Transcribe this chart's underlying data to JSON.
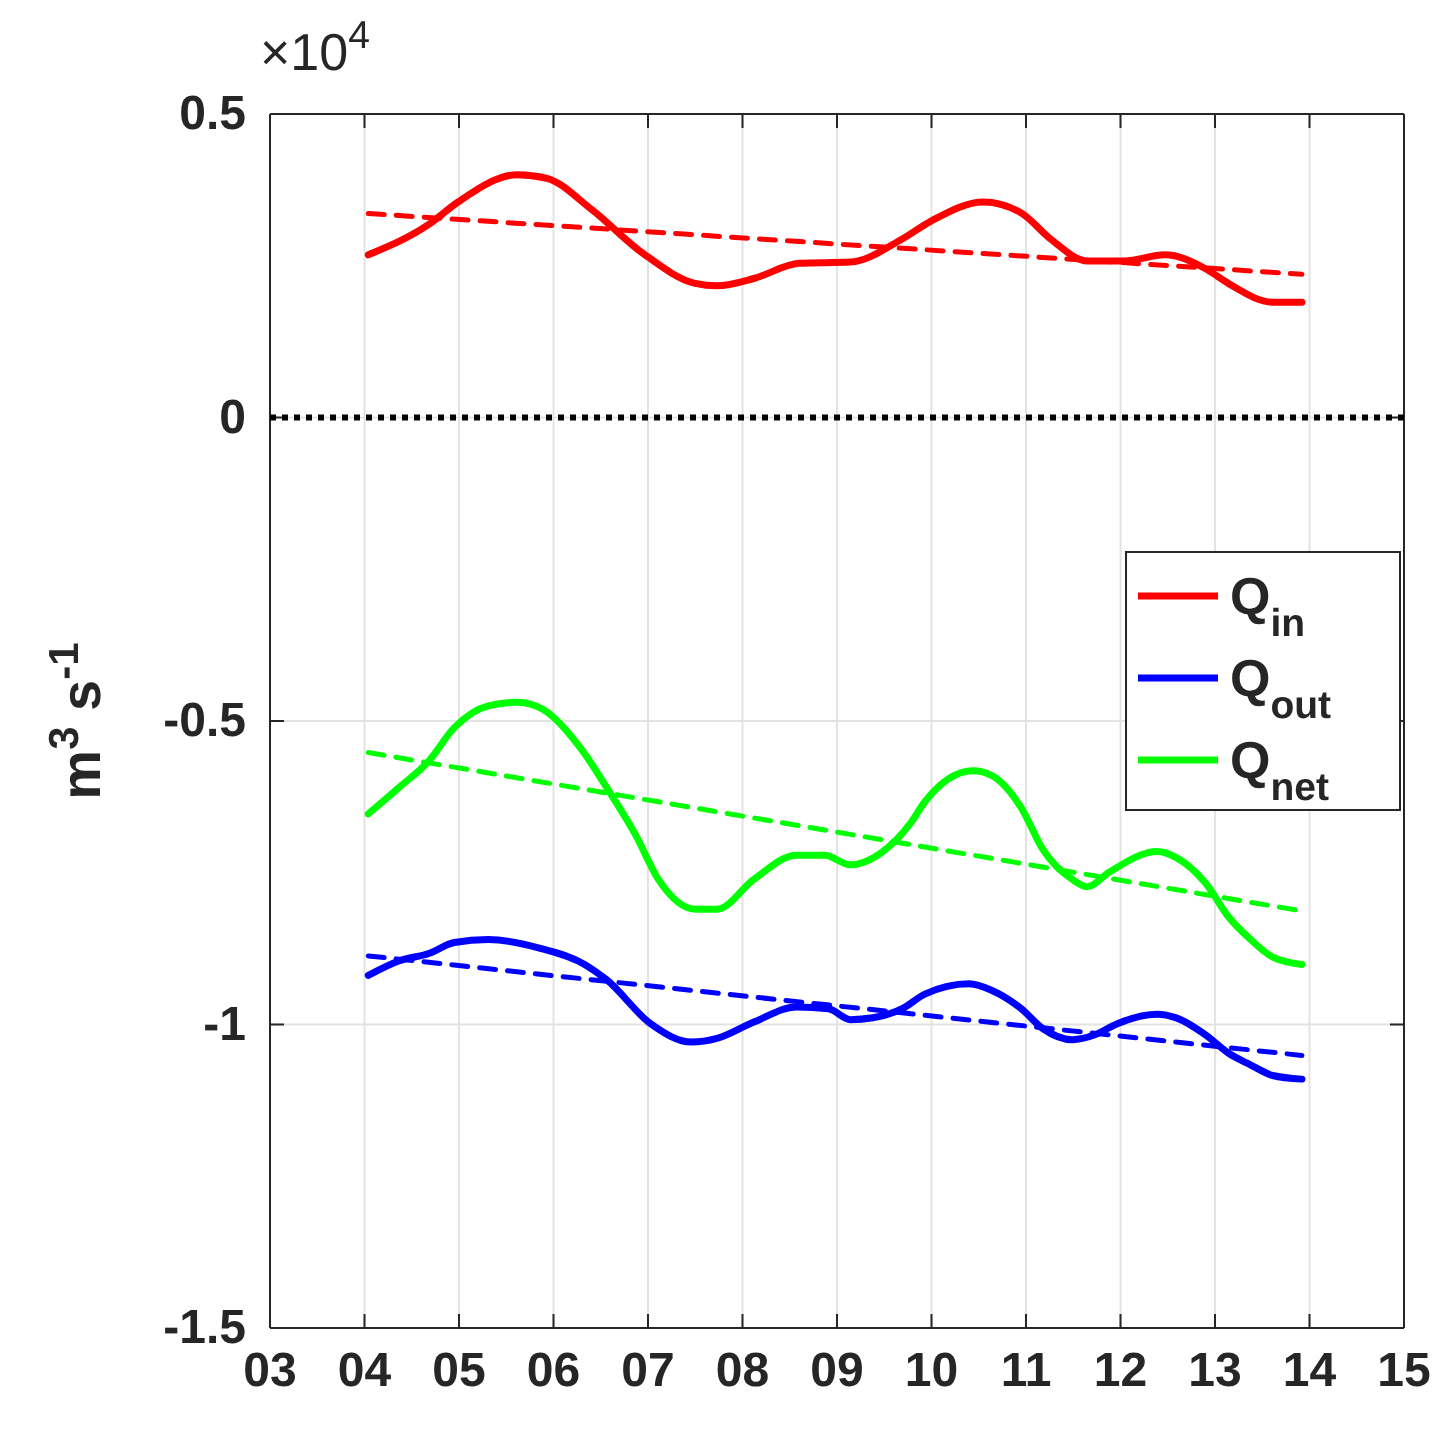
{
  "chart_data": {
    "type": "line",
    "ylabel": "m$^{3}$ s$^{-1}$",
    "annotations": [
      "×10$^{4}$"
    ],
    "xlim": [
      3,
      15
    ],
    "xticks": [
      {
        "value": 3,
        "label": "03"
      },
      {
        "value": 4,
        "label": "04"
      },
      {
        "value": 5,
        "label": "05"
      },
      {
        "value": 6,
        "label": "06"
      },
      {
        "value": 7,
        "label": "07"
      },
      {
        "value": 8,
        "label": "08"
      },
      {
        "value": 9,
        "label": "09"
      },
      {
        "value": 10,
        "label": "10"
      },
      {
        "value": 11,
        "label": "11"
      },
      {
        "value": 12,
        "label": "12"
      },
      {
        "value": 13,
        "label": "13"
      },
      {
        "value": 14,
        "label": "14"
      },
      {
        "value": 15,
        "label": "15"
      }
    ],
    "ylim": [
      -1.5,
      0.5
    ],
    "yticks": [
      -1.5,
      -1,
      -0.5,
      0,
      0.5
    ],
    "grid": true,
    "legend": "right",
    "marker": "none",
    "ref_lines": [
      {
        "axis": "y",
        "value": 0,
        "color": "#000000",
        "line_style": "dotted"
      }
    ],
    "series": [
      {
        "name": "Q$_{in}$",
        "color": "#ff0000",
        "line_style": "solid",
        "x": [
          4.04,
          4.68,
          4.99,
          5.62,
          5.93,
          6.4,
          6.95,
          7.5,
          7.73,
          8.12,
          8.6,
          9.14,
          9.69,
          10.0,
          10.55,
          10.95,
          11.26,
          11.65,
          12.04,
          12.47,
          12.9,
          13.14,
          13.61,
          13.92
        ],
        "values": [
          0.268,
          0.318,
          0.355,
          0.4,
          0.394,
          0.343,
          0.27,
          0.221,
          0.217,
          0.229,
          0.254,
          0.256,
          0.294,
          0.324,
          0.355,
          0.337,
          0.294,
          0.258,
          0.258,
          0.268,
          0.245,
          0.221,
          0.19,
          0.19
        ]
      },
      {
        "name": "Q$_{out}$",
        "color": "#0000ff",
        "line_style": "solid",
        "x": [
          4.04,
          4.37,
          4.68,
          4.95,
          5.31,
          5.85,
          6.33,
          6.56,
          7.03,
          7.46,
          7.73,
          8.12,
          8.57,
          8.91,
          9.14,
          9.38,
          9.69,
          9.93,
          10.4,
          10.64,
          10.95,
          11.18,
          11.49,
          11.73,
          11.96,
          12.39,
          12.59,
          12.9,
          13.14,
          13.37,
          13.61,
          13.92
        ],
        "values": [
          -0.919,
          -0.895,
          -0.883,
          -0.865,
          -0.86,
          -0.874,
          -0.901,
          -0.926,
          -0.999,
          -1.029,
          -1.023,
          -0.996,
          -0.971,
          -0.974,
          -0.992,
          -0.989,
          -0.974,
          -0.95,
          -0.933,
          -0.944,
          -0.974,
          -1.007,
          -1.025,
          -1.017,
          -0.999,
          -0.983,
          -0.989,
          -1.017,
          -1.047,
          -1.066,
          -1.084,
          -1.09
        ]
      },
      {
        "name": "Q$_{net}$",
        "color": "#00ff00",
        "line_style": "solid",
        "x": [
          4.04,
          4.37,
          4.68,
          4.95,
          5.31,
          5.62,
          5.89,
          6.33,
          6.56,
          6.87,
          7.11,
          7.5,
          7.73,
          8.12,
          8.57,
          8.87,
          9.14,
          9.46,
          9.77,
          9.93,
          10.44,
          10.64,
          10.95,
          11.18,
          11.49,
          11.65,
          11.88,
          12.39,
          12.59,
          12.9,
          13.14,
          13.37,
          13.61,
          13.92
        ],
        "values": [
          -0.653,
          -0.609,
          -0.566,
          -0.511,
          -0.475,
          -0.469,
          -0.481,
          -0.554,
          -0.609,
          -0.688,
          -0.761,
          -0.81,
          -0.81,
          -0.761,
          -0.721,
          -0.721,
          -0.737,
          -0.718,
          -0.67,
          -0.633,
          -0.582,
          -0.59,
          -0.643,
          -0.712,
          -0.761,
          -0.773,
          -0.749,
          -0.715,
          -0.725,
          -0.767,
          -0.822,
          -0.859,
          -0.889,
          -0.901
        ]
      },
      {
        "color": "#ff0000",
        "line_style": "dashed",
        "x": [
          4.04,
          13.92
        ],
        "values": [
          0.336,
          0.236
        ]
      },
      {
        "color": "#0000ff",
        "line_style": "dashed",
        "x": [
          4.04,
          13.92
        ],
        "values": [
          -0.887,
          -1.051
        ]
      },
      {
        "color": "#00ff00",
        "line_style": "dashed",
        "x": [
          4.04,
          13.92
        ],
        "values": [
          -0.552,
          -0.813
        ]
      }
    ]
  }
}
